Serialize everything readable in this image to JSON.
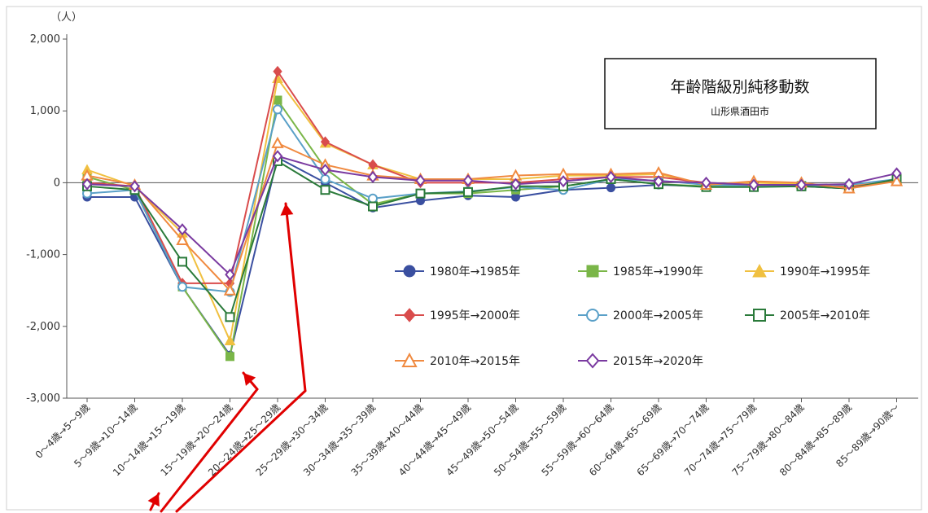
{
  "chart_data": {
    "type": "line",
    "title": "年齢階級別純移動数",
    "subtitle": "山形県酒田市",
    "ylabel": "（人）",
    "ylim": [
      -3000,
      2000
    ],
    "yticks": [
      2000,
      1000,
      0,
      -1000,
      -2000,
      -3000
    ],
    "ytick_labels": [
      "2,000",
      "1,000",
      "0",
      "-1,000",
      "-2,000",
      "-3,000"
    ],
    "grid": false,
    "legend_position": "center-right",
    "categories": [
      "0～4歳→5～9歳",
      "5～9歳→10～14歳",
      "10～14歳→15～19歳",
      "15～19歳→20～24歳",
      "20～24歳→25～29歳",
      "25～29歳→30～34歳",
      "30～34歳→35～39歳",
      "35～39歳→40～44歳",
      "40～44歳→45～49歳",
      "45～49歳→50～54歳",
      "50～54歳→55～59歳",
      "55～59歳→60～64歳",
      "60～64歳→65～69歳",
      "65～69歳→70～74歳",
      "70～74歳→75～79歳",
      "75～79歳→80～84歳",
      "80～84歳→85～89歳",
      "85～89歳→90歳～"
    ],
    "series": [
      {
        "name": "1980年→1985年",
        "color": "#3a4fa0",
        "marker": "circle-filled",
        "values": [
          -200,
          -200,
          -1450,
          -2400,
          350,
          0,
          -350,
          -250,
          -180,
          -200,
          -100,
          -70,
          -30,
          -50,
          -50,
          -50,
          -80,
          50
        ]
      },
      {
        "name": "1985年→1990年",
        "color": "#7ab648",
        "marker": "square-filled",
        "values": [
          80,
          -100,
          -1450,
          -2420,
          1150,
          200,
          -300,
          -150,
          -150,
          -100,
          -50,
          50,
          -20,
          -50,
          -40,
          -40,
          -80,
          50
        ]
      },
      {
        "name": "1990年→1995年",
        "color": "#f0c040",
        "marker": "triangle-filled",
        "values": [
          180,
          -50,
          -700,
          -2200,
          1450,
          550,
          250,
          50,
          50,
          50,
          100,
          100,
          120,
          -30,
          0,
          -20,
          -50,
          50
        ]
      },
      {
        "name": "1995年→2000年",
        "color": "#d94c4c",
        "marker": "diamond-filled",
        "values": [
          0,
          -50,
          -1400,
          -1400,
          1550,
          570,
          250,
          0,
          0,
          0,
          50,
          80,
          80,
          0,
          -30,
          -30,
          -60,
          30
        ]
      },
      {
        "name": "2000年→2005年",
        "color": "#5aa0c8",
        "marker": "circle-open",
        "values": [
          -150,
          -100,
          -1450,
          -1520,
          1020,
          50,
          -220,
          -150,
          -120,
          -60,
          -100,
          50,
          30,
          -30,
          -40,
          -40,
          -30,
          50
        ]
      },
      {
        "name": "2005年→2010年",
        "color": "#2a7a3a",
        "marker": "square-open",
        "values": [
          -50,
          -100,
          -1100,
          -1870,
          300,
          -100,
          -330,
          -150,
          -130,
          -50,
          -50,
          50,
          -20,
          -60,
          -60,
          -50,
          -80,
          50
        ]
      },
      {
        "name": "2010年→2015年",
        "color": "#f08a40",
        "marker": "triangle-open",
        "values": [
          100,
          -30,
          -800,
          -1500,
          550,
          250,
          100,
          50,
          50,
          100,
          120,
          120,
          140,
          -30,
          20,
          0,
          -80,
          20
        ]
      },
      {
        "name": "2015年→2020年",
        "color": "#7a3aa0",
        "marker": "diamond-open",
        "values": [
          -20,
          -50,
          -650,
          -1280,
          370,
          180,
          80,
          30,
          30,
          -20,
          20,
          80,
          20,
          0,
          -30,
          -30,
          -20,
          130
        ]
      }
    ]
  }
}
